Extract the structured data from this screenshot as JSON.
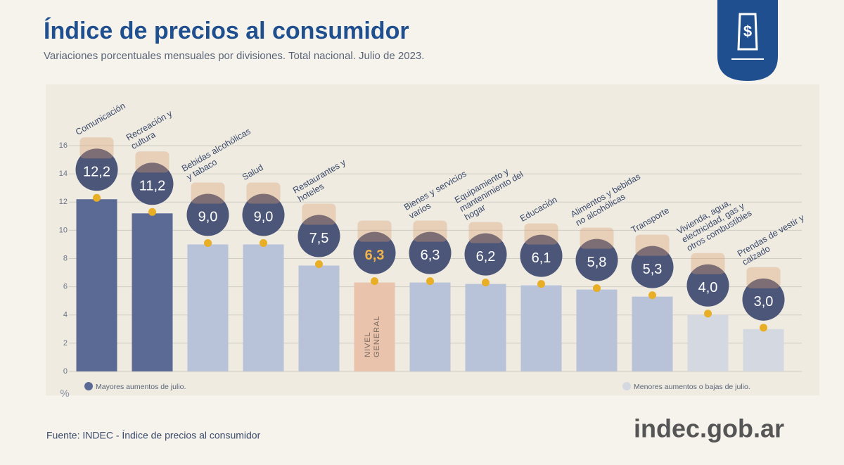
{
  "chart_data": {
    "type": "bar",
    "title": "Índice de precios al consumidor",
    "subtitle": "Variaciones porcentuales mensuales por divisiones. Total nacional. Julio de 2023.",
    "y_unit": "%",
    "categories": [
      "Comunicación",
      "Recreación y cultura",
      "Bebidas alcohólicas y tabaco",
      "Salud",
      "Restaurantes y hoteles",
      "NIVEL GENERAL",
      "Bienes y servicios varios",
      "Equipamiento y mantenimiento del hogar",
      "Educación",
      "Alimentos y bebidas no alcohólicas",
      "Transporte",
      "Vivienda, agua, electricidad, gas y otros combustibles",
      "Prendas de vestir y calzado"
    ],
    "values": [
      12.2,
      11.2,
      9.0,
      9.0,
      7.5,
      6.3,
      6.3,
      6.2,
      6.1,
      5.8,
      5.3,
      4.0,
      3.0
    ],
    "value_labels": [
      "12,2",
      "11,2",
      "9,0",
      "9,0",
      "7,5",
      "6,3",
      "6,3",
      "6,2",
      "6,1",
      "5,8",
      "5,3",
      "4,0",
      "3,0"
    ],
    "colors": [
      "#5b6a95",
      "#5b6a95",
      "#b8c2d8",
      "#b8c2d8",
      "#b8c2d8",
      "#eac3ad",
      "#b8c2d8",
      "#b8c2d8",
      "#b8c2d8",
      "#b8c2d8",
      "#b8c2d8",
      "#d4d8e1",
      "#d4d8e1"
    ],
    "ylim": [
      0,
      16
    ],
    "yticks": [
      0,
      2,
      4,
      6,
      8,
      10,
      12,
      14,
      16
    ],
    "grid": true,
    "legend": [
      {
        "name": "Mayores aumentos de julio.",
        "color": "#5b6a95"
      },
      {
        "name": "Menores aumentos o bajas de julio.",
        "color": "#d4d8e1"
      }
    ]
  },
  "footer": {
    "source": "Fuente: INDEC - Índice de precios al consumidor",
    "logo": "indec.gob.ar"
  }
}
